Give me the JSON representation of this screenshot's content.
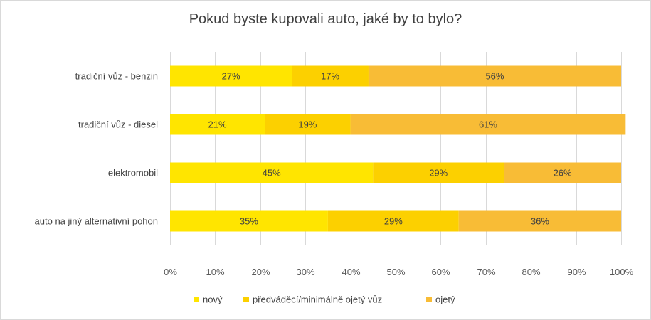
{
  "chart_data": {
    "type": "bar",
    "orientation": "horizontal",
    "stacked": "100%",
    "title": "Pokud byste kupovali auto, jaké by to bylo?",
    "categories": [
      "tradiční vůz - benzin",
      "tradiční vůz - diesel",
      "elektromobil",
      "auto na jiný alternativní pohon"
    ],
    "series": [
      {
        "name": "nový",
        "color": "#ffe500",
        "values": [
          27,
          21,
          45,
          35
        ]
      },
      {
        "name": "předváděcí/minimálně ojetý vůz",
        "color": "#fcd000",
        "values": [
          17,
          19,
          29,
          29
        ]
      },
      {
        "name": "ojetý",
        "color": "#f8bc36",
        "values": [
          56,
          61,
          26,
          36
        ]
      }
    ],
    "data_labels": [
      [
        "27%",
        "17%",
        "56%"
      ],
      [
        "21%",
        "19%",
        "61%"
      ],
      [
        "45%",
        "29%",
        "26%"
      ],
      [
        "35%",
        "29%",
        "36%"
      ]
    ],
    "x_ticks": [
      "0%",
      "10%",
      "20%",
      "30%",
      "40%",
      "50%",
      "60%",
      "70%",
      "80%",
      "90%",
      "100%"
    ],
    "xlim": [
      0,
      100
    ],
    "grid": true,
    "legend_position": "bottom"
  }
}
